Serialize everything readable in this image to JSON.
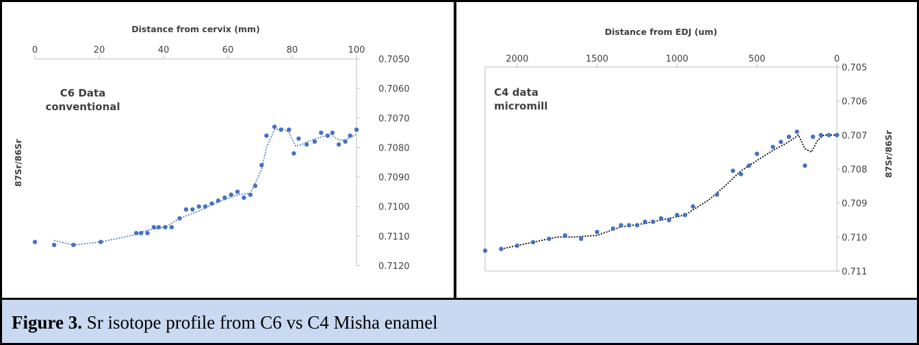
{
  "caption": {
    "label": "Figure 3.",
    "text": " Sr isotope profile from C6 vs C4 Misha enamel"
  },
  "colors": {
    "point": "#4472c4",
    "trend_left": "#4472c4",
    "trend_right": "#000000",
    "axis": "#bfbfbf",
    "text": "#404040"
  },
  "chart_data": [
    {
      "type": "scatter",
      "title": "",
      "xlabel": "Distance from cervix (mm)",
      "ylabel": "87Sr/86Sr",
      "annotation": [
        "C6 Data",
        "conventional"
      ],
      "xlim": [
        0,
        100
      ],
      "ylim": [
        0.705,
        0.712
      ],
      "y_reversed": true,
      "x_axis_position": "top",
      "y_axis_position": "right",
      "trendline": "dotted moving average",
      "x_ticks": [
        "0",
        "20",
        "40",
        "60",
        "80",
        "100"
      ],
      "x_tick_values": [
        0,
        20,
        40,
        60,
        80,
        100
      ],
      "y_ticks": [
        "0.7050",
        "0.7060",
        "0.7070",
        "0.7080",
        "0.7090",
        "0.7100",
        "0.7110",
        "0.7120"
      ],
      "y_tick_values": [
        0.705,
        0.706,
        0.707,
        0.708,
        0.709,
        0.71,
        0.711,
        0.712
      ],
      "points": [
        [
          0,
          0.7112
        ],
        [
          6,
          0.7113
        ],
        [
          12,
          0.7113
        ],
        [
          20.5,
          0.7112
        ],
        [
          31.5,
          0.7109
        ],
        [
          33,
          0.7109
        ],
        [
          35,
          0.7109
        ],
        [
          37,
          0.7107
        ],
        [
          38.5,
          0.7107
        ],
        [
          40.5,
          0.7107
        ],
        [
          42.5,
          0.7107
        ],
        [
          45,
          0.7104
        ],
        [
          47,
          0.7101
        ],
        [
          49,
          0.7101
        ],
        [
          51,
          0.71
        ],
        [
          53,
          0.71
        ],
        [
          55,
          0.7099
        ],
        [
          57,
          0.7098
        ],
        [
          59,
          0.7097
        ],
        [
          61,
          0.7096
        ],
        [
          63,
          0.7095
        ],
        [
          65,
          0.7097
        ],
        [
          67,
          0.7096
        ],
        [
          68.5,
          0.7093
        ],
        [
          70.5,
          0.7086
        ],
        [
          72,
          0.7076
        ],
        [
          74.5,
          0.7073
        ],
        [
          76.5,
          0.7074
        ],
        [
          79,
          0.7074
        ],
        [
          80.5,
          0.7082
        ],
        [
          82,
          0.7077
        ],
        [
          84.5,
          0.7079
        ],
        [
          87,
          0.7078
        ],
        [
          89,
          0.7075
        ],
        [
          91,
          0.7076
        ],
        [
          92.5,
          0.7075
        ],
        [
          94.5,
          0.7079
        ],
        [
          96.5,
          0.7078
        ],
        [
          98,
          0.7076
        ],
        [
          100,
          0.7074
        ]
      ],
      "trend": [
        [
          6,
          0.71115
        ],
        [
          12,
          0.7113
        ],
        [
          20.5,
          0.7112
        ],
        [
          31.5,
          0.71095
        ],
        [
          35,
          0.7108
        ],
        [
          40.5,
          0.7107
        ],
        [
          45,
          0.7104
        ],
        [
          51,
          0.71015
        ],
        [
          57,
          0.70985
        ],
        [
          63,
          0.7096
        ],
        [
          67,
          0.70955
        ],
        [
          70.5,
          0.70875
        ],
        [
          72,
          0.708
        ],
        [
          74.5,
          0.7074
        ],
        [
          77,
          0.70735
        ],
        [
          79,
          0.7075
        ],
        [
          81,
          0.70795
        ],
        [
          83,
          0.7079
        ],
        [
          86,
          0.70775
        ],
        [
          89,
          0.70765
        ],
        [
          92,
          0.70755
        ],
        [
          94.5,
          0.70775
        ],
        [
          96.5,
          0.70775
        ],
        [
          100,
          0.70755
        ]
      ]
    },
    {
      "type": "scatter",
      "title": "",
      "xlabel": "Distance from EDJ (um)",
      "ylabel": "87Sr/86Sr",
      "annotation": [
        "C4 data",
        "micromill"
      ],
      "xlim": [
        2200,
        0
      ],
      "ylim": [
        0.705,
        0.711
      ],
      "x_reversed": true,
      "y_reversed": true,
      "x_axis_position": "top",
      "y_axis_position": "right",
      "trendline": "dotted moving average",
      "x_ticks": [
        "2000",
        "1500",
        "1000",
        "500",
        "0"
      ],
      "x_tick_values": [
        2000,
        1500,
        1000,
        500,
        0
      ],
      "y_ticks": [
        "0.705",
        "0.706",
        "0.707",
        "0.708",
        "0.709",
        "0.710",
        "0.711"
      ],
      "y_tick_values": [
        0.705,
        0.706,
        0.707,
        0.708,
        0.709,
        0.71,
        0.711
      ],
      "points": [
        [
          2200,
          0.7104
        ],
        [
          2100,
          0.71035
        ],
        [
          2000,
          0.71025
        ],
        [
          1900,
          0.71015
        ],
        [
          1800,
          0.71005
        ],
        [
          1700,
          0.70995
        ],
        [
          1600,
          0.71005
        ],
        [
          1500,
          0.70985
        ],
        [
          1400,
          0.70975
        ],
        [
          1350,
          0.70965
        ],
        [
          1300,
          0.70965
        ],
        [
          1250,
          0.70965
        ],
        [
          1200,
          0.70955
        ],
        [
          1150,
          0.70955
        ],
        [
          1100,
          0.70945
        ],
        [
          1050,
          0.7095
        ],
        [
          1000,
          0.70935
        ],
        [
          950,
          0.70935
        ],
        [
          900,
          0.7091
        ],
        [
          750,
          0.70875
        ],
        [
          650,
          0.70805
        ],
        [
          600,
          0.70815
        ],
        [
          550,
          0.7079
        ],
        [
          500,
          0.70755
        ],
        [
          400,
          0.70735
        ],
        [
          350,
          0.7072
        ],
        [
          300,
          0.70705
        ],
        [
          250,
          0.7069
        ],
        [
          200,
          0.7079
        ],
        [
          150,
          0.70705
        ],
        [
          100,
          0.707
        ],
        [
          50,
          0.707
        ],
        [
          0,
          0.707
        ]
      ],
      "trend": [
        [
          2100,
          0.71035
        ],
        [
          1900,
          0.71015
        ],
        [
          1750,
          0.71
        ],
        [
          1650,
          0.71
        ],
        [
          1500,
          0.70995
        ],
        [
          1350,
          0.7097
        ],
        [
          1200,
          0.7096
        ],
        [
          1050,
          0.70945
        ],
        [
          950,
          0.70935
        ],
        [
          800,
          0.7089
        ],
        [
          700,
          0.7085
        ],
        [
          600,
          0.70805
        ],
        [
          500,
          0.70775
        ],
        [
          400,
          0.70745
        ],
        [
          320,
          0.70725
        ],
        [
          270,
          0.7071
        ],
        [
          240,
          0.707
        ],
        [
          200,
          0.7074
        ],
        [
          160,
          0.7075
        ],
        [
          120,
          0.70715
        ],
        [
          80,
          0.707
        ],
        [
          0,
          0.707
        ]
      ]
    }
  ]
}
